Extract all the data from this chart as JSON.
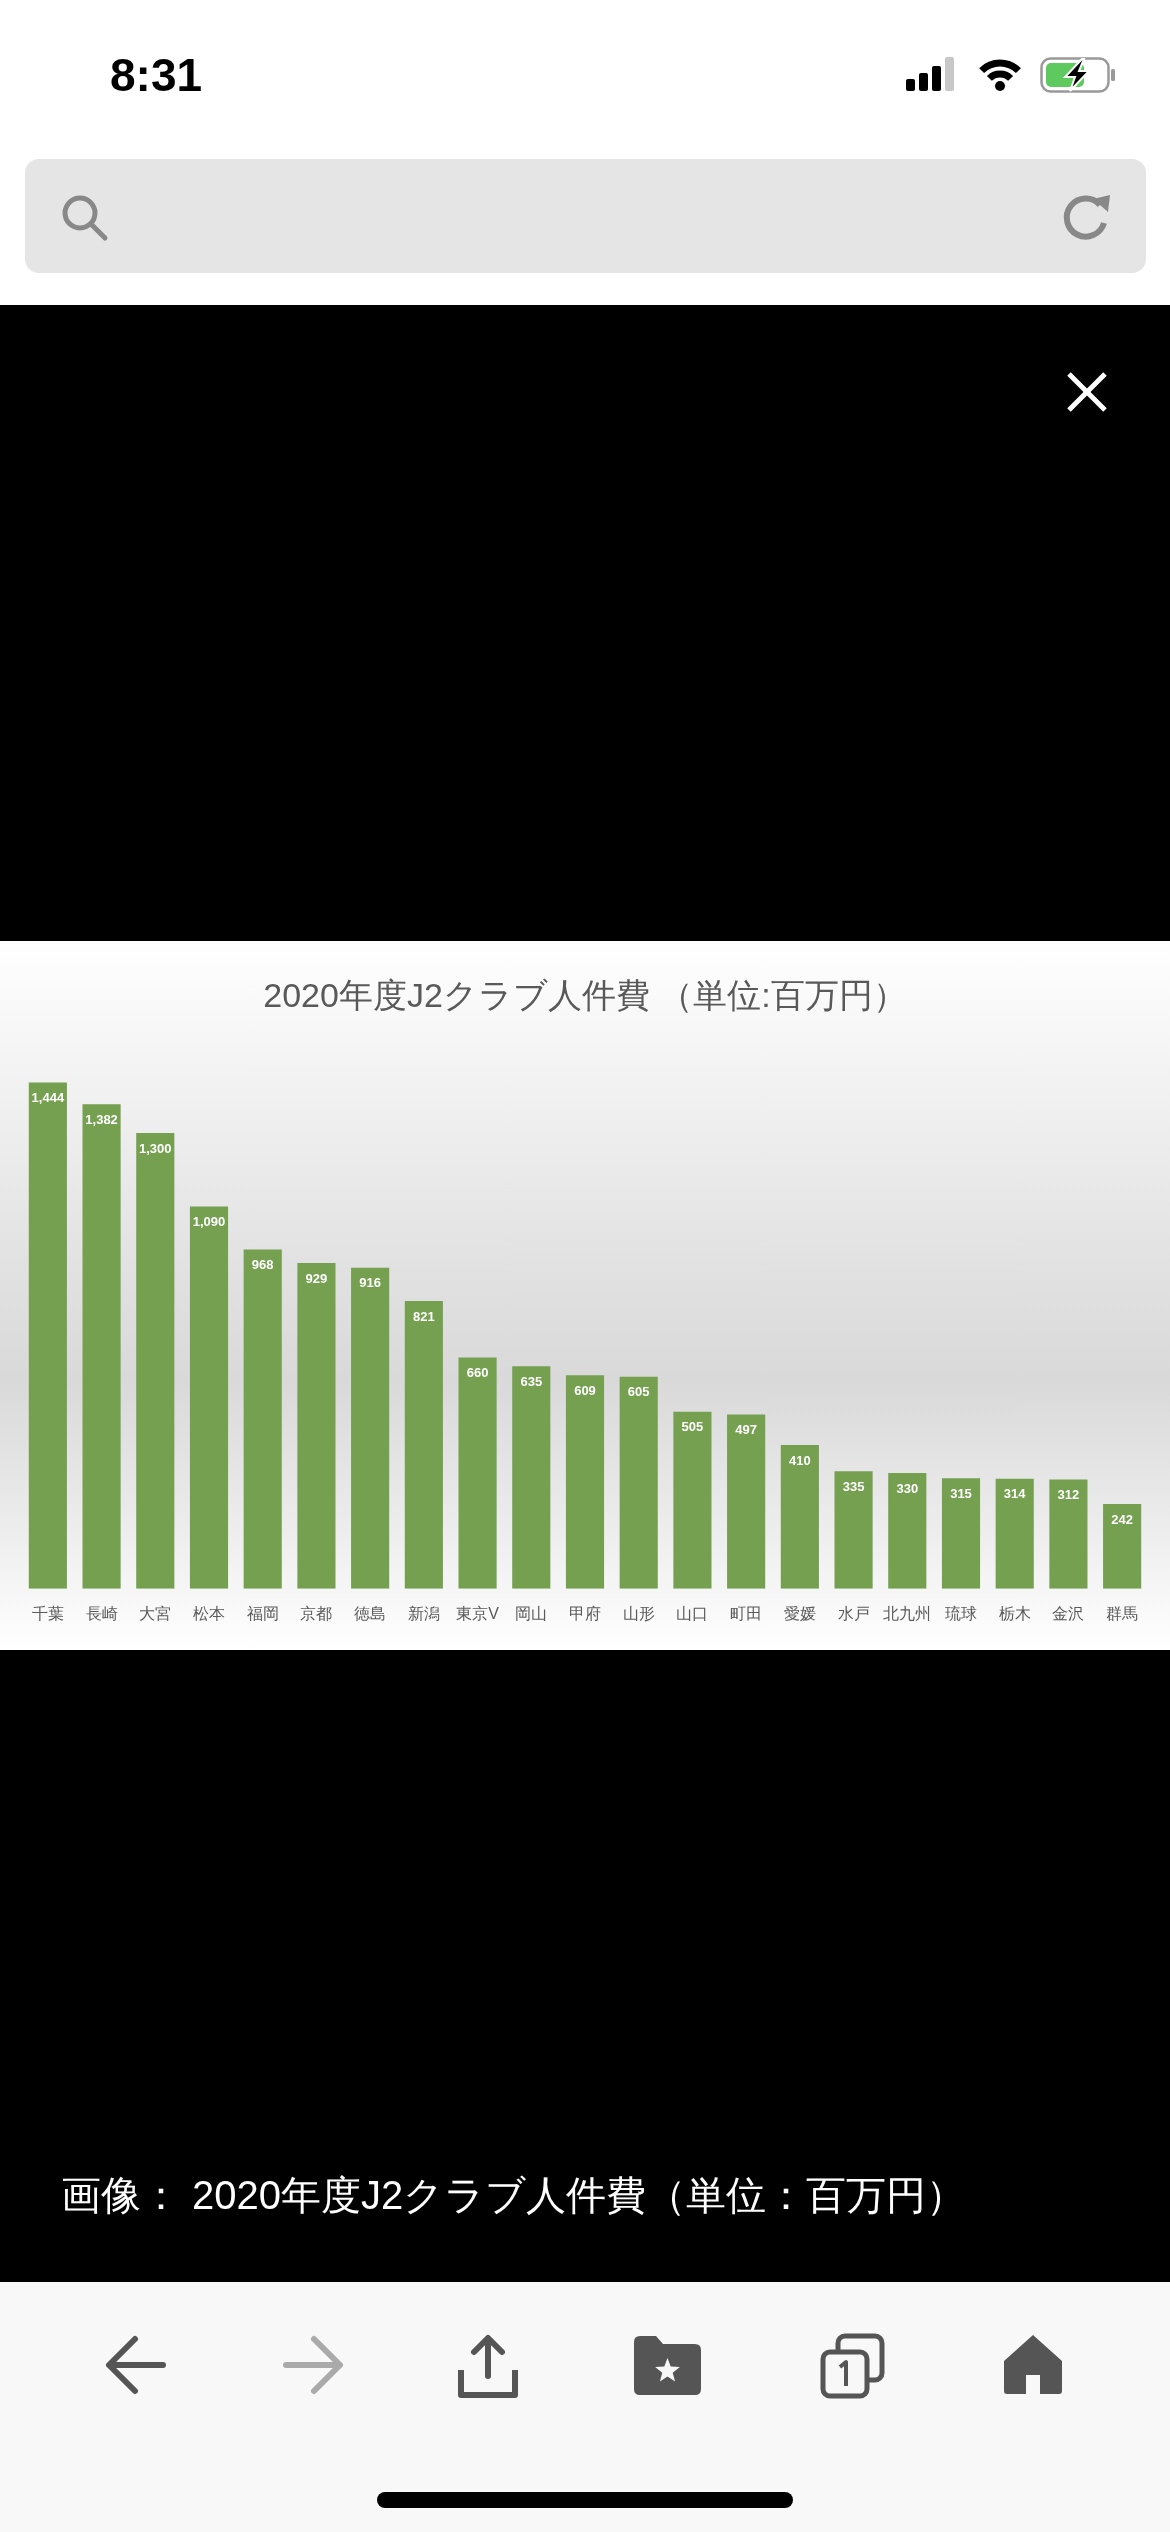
{
  "chart_data": {
    "type": "bar",
    "title": "2020年度J2クラブ人件費 （単位:百万円）",
    "categories": [
      "千葉",
      "長崎",
      "大宮",
      "松本",
      "福岡",
      "京都",
      "徳島",
      "新潟",
      "東京V",
      "岡山",
      "甲府",
      "山形",
      "山口",
      "町田",
      "愛媛",
      "水戸",
      "北九州",
      "琉球",
      "栃木",
      "金沢",
      "群馬"
    ],
    "values": [
      1444,
      1382,
      1300,
      1090,
      968,
      929,
      916,
      821,
      660,
      635,
      609,
      605,
      505,
      497,
      410,
      335,
      330,
      315,
      314,
      312,
      242
    ],
    "value_labels": [
      "1,444",
      "1,382",
      "1,300",
      "1,090",
      "968",
      "929",
      "916",
      "821",
      "660",
      "635",
      "609",
      "605",
      "505",
      "497",
      "410",
      "335",
      "330",
      "315",
      "314",
      "312",
      "242"
    ],
    "color": "#74a050",
    "tick_labels": "x",
    "annotations": [
      "8:31",
      "画像： 2020年度J2クラブ人件費（単位：百万円）"
    ]
  }
}
